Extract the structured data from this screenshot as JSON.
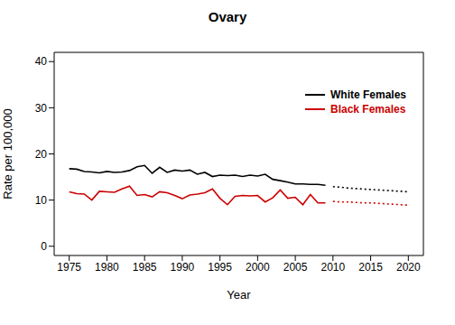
{
  "chart_data": {
    "type": "line",
    "title": "Ovary",
    "x_label": "Year",
    "y_label": "Rate per 100,000",
    "x": [
      1975,
      1976,
      1977,
      1978,
      1979,
      1980,
      1981,
      1982,
      1983,
      1984,
      1985,
      1986,
      1987,
      1988,
      1989,
      1990,
      1991,
      1992,
      1993,
      1994,
      1995,
      1996,
      1997,
      1998,
      1999,
      2000,
      2001,
      2002,
      2003,
      2004,
      2005,
      2006,
      2007,
      2008,
      2009,
      2010,
      2011,
      2012,
      2013,
      2014,
      2015,
      2016,
      2017,
      2018,
      2019,
      2020
    ],
    "series": [
      {
        "name": "White Females",
        "color": "#000000",
        "line_style": "solid",
        "values": [
          16.8,
          16.7,
          16.2,
          16.1,
          15.9,
          16.2,
          16.0,
          16.1,
          16.4,
          17.2,
          17.5,
          15.8,
          17.1,
          16.0,
          16.5,
          16.3,
          16.5,
          15.6,
          16.0,
          15.1,
          15.4,
          15.3,
          15.4,
          15.1,
          15.4,
          15.2,
          15.6,
          14.5,
          14.2,
          13.9,
          13.5,
          13.5,
          13.4,
          13.4,
          13.2,
          null,
          null,
          null,
          null,
          null,
          null,
          null,
          null,
          null,
          null,
          null
        ]
      },
      {
        "name": "Black Females",
        "color": "#cc0000",
        "line_style": "solid",
        "values": [
          11.8,
          11.4,
          11.3,
          10.0,
          11.9,
          11.8,
          11.7,
          12.4,
          13.0,
          11.0,
          11.2,
          10.7,
          11.8,
          11.6,
          11.0,
          10.3,
          11.1,
          11.3,
          11.6,
          12.4,
          10.4,
          9.0,
          10.8,
          11.0,
          10.9,
          11.0,
          9.6,
          10.5,
          12.2,
          10.4,
          10.6,
          9.0,
          11.2,
          9.4,
          9.4,
          null,
          null,
          null,
          null,
          null,
          null,
          null,
          null,
          null,
          null,
          null
        ]
      },
      {
        "color": "#000000",
        "line_style": "dotted",
        "values": [
          null,
          null,
          null,
          null,
          null,
          null,
          null,
          null,
          null,
          null,
          null,
          null,
          null,
          null,
          null,
          null,
          null,
          null,
          null,
          null,
          null,
          null,
          null,
          null,
          null,
          null,
          null,
          null,
          null,
          null,
          null,
          null,
          null,
          null,
          null,
          12.9,
          12.8,
          12.6,
          12.5,
          12.4,
          12.3,
          12.2,
          12.1,
          12.0,
          11.9,
          11.8
        ]
      },
      {
        "color": "#cc0000",
        "line_style": "dotted",
        "values": [
          null,
          null,
          null,
          null,
          null,
          null,
          null,
          null,
          null,
          null,
          null,
          null,
          null,
          null,
          null,
          null,
          null,
          null,
          null,
          null,
          null,
          null,
          null,
          null,
          null,
          null,
          null,
          null,
          null,
          null,
          null,
          null,
          null,
          null,
          null,
          9.7,
          9.6,
          9.6,
          9.5,
          9.4,
          9.4,
          9.3,
          9.2,
          9.1,
          9.0,
          8.9
        ]
      }
    ],
    "xlim": [
      1973,
      2022
    ],
    "xticks": [
      1975,
      1980,
      1985,
      1990,
      1995,
      2000,
      2005,
      2010,
      2015,
      2020
    ],
    "ylim": [
      -2,
      42
    ],
    "yticks": [
      0,
      10,
      20,
      30,
      40
    ],
    "legend": "upper right"
  }
}
